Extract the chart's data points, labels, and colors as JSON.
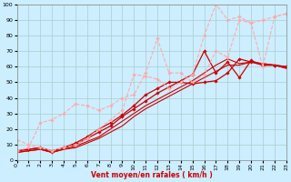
{
  "background_color": "#cceeff",
  "grid_color": "#aacccc",
  "xlabel": "Vent moyen/en rafales ( km/h )",
  "xlim": [
    0,
    23
  ],
  "ylim": [
    0,
    100
  ],
  "yticks": [
    0,
    10,
    20,
    30,
    40,
    50,
    60,
    70,
    80,
    90,
    100
  ],
  "xticks": [
    0,
    1,
    2,
    3,
    4,
    5,
    6,
    7,
    8,
    9,
    10,
    11,
    12,
    13,
    14,
    15,
    16,
    17,
    18,
    19,
    20,
    21,
    22,
    23
  ],
  "lines": [
    {
      "x": [
        0,
        1,
        2,
        3,
        4,
        5,
        6,
        7,
        8,
        9,
        10,
        11,
        12,
        13,
        14,
        15,
        16,
        17,
        18,
        19,
        20,
        21,
        22,
        23
      ],
      "y": [
        5,
        6,
        7,
        5,
        7,
        8,
        11,
        14,
        18,
        22,
        28,
        33,
        37,
        41,
        45,
        49,
        53,
        57,
        61,
        61,
        63,
        62,
        61,
        59
      ],
      "color": "#cc0000",
      "lw": 0.8,
      "marker": null,
      "ms": 0,
      "dashed": false
    },
    {
      "x": [
        0,
        1,
        2,
        3,
        4,
        5,
        6,
        7,
        8,
        9,
        10,
        11,
        12,
        13,
        14,
        15,
        16,
        17,
        18,
        19,
        20,
        21,
        22,
        23
      ],
      "y": [
        5,
        6,
        7,
        5,
        7,
        9,
        12,
        15,
        20,
        25,
        30,
        35,
        39,
        43,
        47,
        51,
        56,
        61,
        65,
        62,
        63,
        62,
        61,
        59
      ],
      "color": "#cc0000",
      "lw": 0.8,
      "marker": null,
      "ms": 0,
      "dashed": false
    },
    {
      "x": [
        0,
        1,
        2,
        3,
        4,
        5,
        6,
        7,
        8,
        9,
        10,
        11,
        12,
        13,
        14,
        15,
        16,
        17,
        18,
        19,
        20,
        21,
        22,
        23
      ],
      "y": [
        6,
        7,
        8,
        5,
        8,
        10,
        14,
        18,
        22,
        28,
        33,
        38,
        43,
        47,
        51,
        55,
        70,
        56,
        63,
        53,
        64,
        61,
        61,
        60
      ],
      "color": "#cc0000",
      "lw": 0.9,
      "marker": "D",
      "ms": 1.8,
      "dashed": false
    },
    {
      "x": [
        0,
        1,
        2,
        3,
        4,
        5,
        6,
        7,
        8,
        9,
        10,
        11,
        12,
        13,
        14,
        15,
        16,
        17,
        18,
        19,
        20,
        21,
        22,
        23
      ],
      "y": [
        6,
        7,
        8,
        6,
        8,
        11,
        15,
        20,
        24,
        29,
        35,
        42,
        46,
        50,
        50,
        49,
        50,
        51,
        56,
        65,
        63,
        61,
        61,
        60
      ],
      "color": "#cc0000",
      "lw": 0.9,
      "marker": "D",
      "ms": 1.8,
      "dashed": false
    },
    {
      "x": [
        0,
        1,
        2,
        3,
        4,
        5,
        6,
        7,
        8,
        9,
        10,
        11,
        12,
        13,
        14,
        15,
        16,
        17,
        18,
        19,
        20,
        21,
        22,
        23
      ],
      "y": [
        13,
        10,
        8,
        6,
        8,
        10,
        14,
        20,
        26,
        32,
        55,
        54,
        52,
        46,
        50,
        55,
        80,
        100,
        90,
        92,
        88,
        90,
        92,
        94
      ],
      "color": "#ffaaaa",
      "lw": 0.8,
      "marker": "D",
      "ms": 1.8,
      "dashed": true
    },
    {
      "x": [
        0,
        1,
        2,
        3,
        4,
        5,
        6,
        7,
        8,
        9,
        10,
        11,
        12,
        13,
        14,
        15,
        16,
        17,
        18,
        19,
        20,
        21,
        22,
        23
      ],
      "y": [
        6,
        8,
        24,
        26,
        30,
        36,
        35,
        32,
        35,
        40,
        42,
        56,
        78,
        56,
        56,
        50,
        55,
        70,
        66,
        90,
        88,
        60,
        92,
        94
      ],
      "color": "#ffaaaa",
      "lw": 0.8,
      "marker": "D",
      "ms": 1.8,
      "dashed": true
    }
  ]
}
